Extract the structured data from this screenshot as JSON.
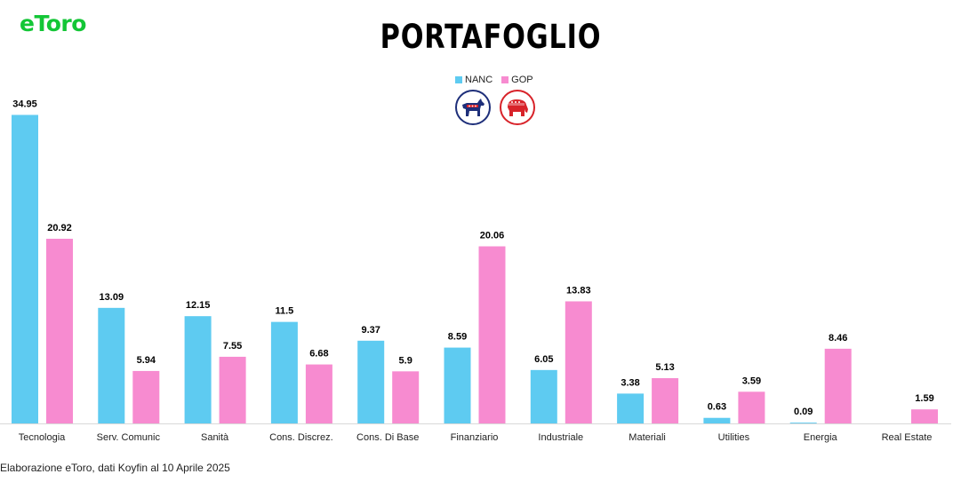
{
  "logo": "eToro",
  "source": "Elaborazione eToro, dati Koyfin al 10 Aprile 2025",
  "icons": [
    "democratic-donkey-icon",
    "republican-elephant-icon"
  ],
  "colors": {
    "nanc": "#5ecbf1",
    "gop": "#f78bd0",
    "brand": "#13c636"
  },
  "chart_data": {
    "type": "bar",
    "title": "PORTAFOGLIO",
    "xlabel": "",
    "ylabel": "",
    "ylim": [
      0,
      36
    ],
    "grid": false,
    "legend": "top-center",
    "categories": [
      "Tecnologia",
      "Serv. Comunic",
      "Sanità",
      "Cons. Discrez.",
      "Cons. Di Base",
      "Finanziario",
      "Industriale",
      "Materiali",
      "Utilities",
      "Energia",
      "Real Estate"
    ],
    "series": [
      {
        "name": "NANC",
        "values": [
          34.95,
          13.09,
          12.15,
          11.5,
          9.37,
          8.59,
          6.05,
          3.38,
          0.63,
          0.09,
          null
        ]
      },
      {
        "name": "GOP",
        "values": [
          20.92,
          5.94,
          7.55,
          6.68,
          5.9,
          20.06,
          13.83,
          5.13,
          3.59,
          8.46,
          1.59
        ]
      }
    ]
  }
}
